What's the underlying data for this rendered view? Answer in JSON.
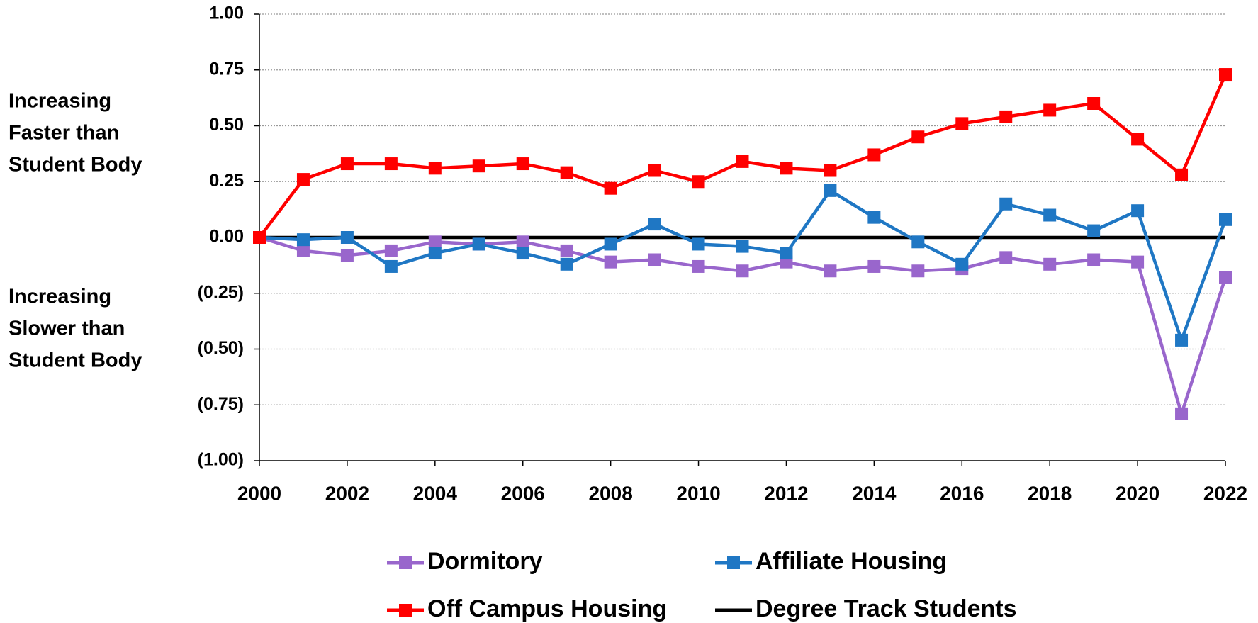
{
  "chart_data": {
    "type": "line",
    "x": [
      2000,
      2001,
      2002,
      2003,
      2004,
      2005,
      2006,
      2007,
      2008,
      2009,
      2010,
      2011,
      2012,
      2013,
      2014,
      2015,
      2016,
      2017,
      2018,
      2019,
      2020,
      2021,
      2022
    ],
    "series": [
      {
        "name": "Dormitory",
        "color": "#9966cc",
        "marker": "square",
        "values": [
          0,
          -0.06,
          -0.08,
          -0.06,
          -0.02,
          -0.03,
          -0.02,
          -0.06,
          -0.11,
          -0.1,
          -0.13,
          -0.15,
          -0.11,
          -0.15,
          -0.13,
          -0.15,
          -0.14,
          -0.09,
          -0.12,
          -0.1,
          -0.11,
          -0.79,
          -0.18
        ]
      },
      {
        "name": "Affiliate Housing",
        "color": "#1f77c4",
        "marker": "square",
        "values": [
          0,
          -0.01,
          0.0,
          -0.13,
          -0.07,
          -0.03,
          -0.07,
          -0.12,
          -0.03,
          0.06,
          -0.03,
          -0.04,
          -0.07,
          0.21,
          0.09,
          -0.02,
          -0.12,
          0.15,
          0.1,
          0.03,
          0.12,
          -0.46,
          0.08
        ]
      },
      {
        "name": "Off Campus Housing",
        "color": "#ff0000",
        "marker": "square",
        "values": [
          0,
          0.26,
          0.33,
          0.33,
          0.31,
          0.32,
          0.33,
          0.29,
          0.22,
          0.3,
          0.25,
          0.34,
          0.31,
          0.3,
          0.37,
          0.45,
          0.51,
          0.54,
          0.57,
          0.6,
          0.44,
          0.28,
          0.73
        ]
      },
      {
        "name": "Degree Track Students",
        "color": "#000000",
        "marker": "none",
        "values": [
          0,
          0,
          0,
          0,
          0,
          0,
          0,
          0,
          0,
          0,
          0,
          0,
          0,
          0,
          0,
          0,
          0,
          0,
          0,
          0,
          0,
          0,
          0
        ]
      }
    ],
    "xlim": [
      2000,
      2022
    ],
    "xticks": [
      2000,
      2002,
      2004,
      2006,
      2008,
      2010,
      2012,
      2014,
      2016,
      2018,
      2020,
      2022
    ],
    "ylim": [
      -1,
      1
    ],
    "yticks": [
      {
        "value": 1,
        "label": "1.00"
      },
      {
        "value": 0.75,
        "label": "0.75"
      },
      {
        "value": 0.5,
        "label": "0.50"
      },
      {
        "value": 0.25,
        "label": "0.25"
      },
      {
        "value": 0,
        "label": "0.00"
      },
      {
        "value": -0.25,
        "label": "(0.25)"
      },
      {
        "value": -0.5,
        "label": "(0.50)"
      },
      {
        "value": -0.75,
        "label": "(0.75)"
      },
      {
        "value": -1,
        "label": "(1.00)"
      }
    ],
    "grid": true,
    "legend": "bottom",
    "annotations": [
      [
        "Increasing",
        "Faster than",
        "Student Body"
      ],
      [
        "Increasing",
        "Slower than",
        "Student Body"
      ]
    ]
  }
}
